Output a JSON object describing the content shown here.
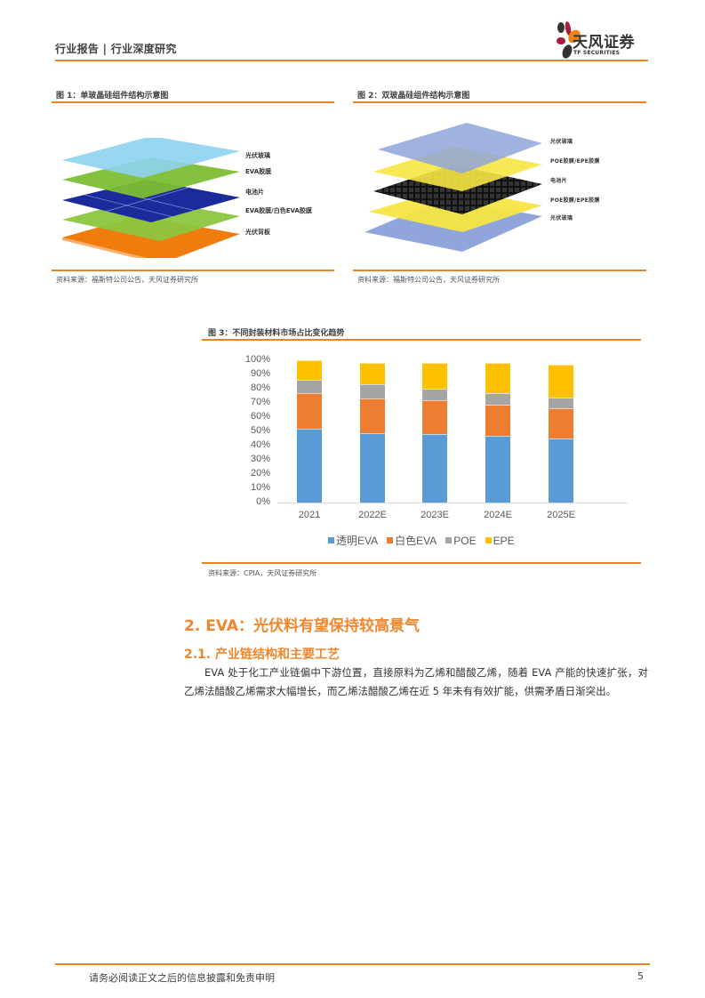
{
  "header": {
    "title": "行业报告 | 行业深度研究",
    "logo_cn": "天风证券",
    "logo_en": "TF SECURITIES",
    "accent_color": "#E98324"
  },
  "figures": [
    {
      "title": "图 1：单玻晶硅组件结构示意图",
      "layers": [
        "光伏玻璃",
        "EVA胶膜",
        "电池片",
        "EVA胶膜/白色EVA胶膜",
        "光伏背板"
      ],
      "source": "资料来源：福斯特公司公告，天风证券研究所"
    },
    {
      "title": "图 2：双玻晶硅组件结构示意图",
      "layers": [
        "光伏玻璃",
        "POE胶膜/EPE胶膜",
        "电池片",
        "POE胶膜/EPE胶膜",
        "光伏玻璃"
      ],
      "source": "资料来源：福斯特公司公告，天风证券研究所"
    },
    {
      "title": "图 3：不同封装材料市场占比变化趋势",
      "source": "资料来源：CPIA，天风证券研究所"
    }
  ],
  "chart_data": {
    "type": "bar",
    "stacked": true,
    "title": "不同封装材料市场占比变化趋势",
    "categories": [
      "2021",
      "2022E",
      "2023E",
      "2024E",
      "2025E"
    ],
    "series": [
      {
        "name": "透明EVA",
        "color": "#5B9BD5",
        "values": [
          52,
          49,
          48,
          47,
          45
        ]
      },
      {
        "name": "白色EVA",
        "color": "#ED7D31",
        "values": [
          25,
          24,
          24,
          22,
          21
        ]
      },
      {
        "name": "POE",
        "color": "#A5A5A5",
        "values": [
          9,
          10,
          8,
          8,
          8
        ]
      },
      {
        "name": "EPE",
        "color": "#FFC000",
        "values": [
          14,
          15,
          18,
          21,
          23
        ]
      }
    ],
    "yticks": [
      "0%",
      "10%",
      "20%",
      "30%",
      "40%",
      "50%",
      "60%",
      "70%",
      "80%",
      "90%",
      "100%"
    ],
    "ylim": [
      0,
      100
    ],
    "xlabel": "",
    "ylabel": "",
    "grid": false,
    "legend_position": "bottom"
  },
  "section": {
    "h1": "2. EVA：光伏料有望保持较高景气",
    "h2": "2.1. 产业链结构和主要工艺",
    "paragraph": "EVA 处于化工产业链偏中下游位置，直接原料为乙烯和醋酸乙烯，随着 EVA 产能的快速扩张，对乙烯法醋酸乙烯需求大幅增长，而乙烯法醋酸乙烯在近 5 年未有有效扩能，供需矛盾日渐突出。"
  },
  "footer": {
    "disclaimer": "请务必阅读正文之后的信息披露和免责申明",
    "page": "5"
  }
}
